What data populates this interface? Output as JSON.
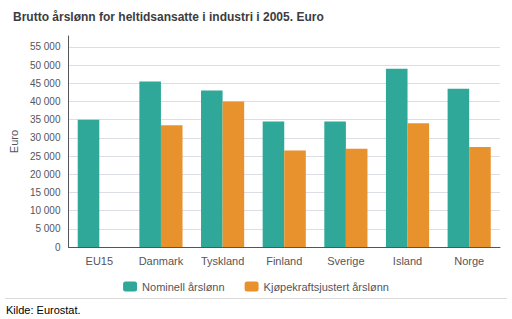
{
  "chart_data": {
    "type": "bar",
    "title": "Brutto årslønn for heltidsansatte i industri i 2005. Euro",
    "ylabel": "Euro",
    "categories": [
      "EU15",
      "Danmark",
      "Tyskland",
      "Finland",
      "Sverige",
      "Island",
      "Norge"
    ],
    "series": [
      {
        "name": "Nominell årslønn",
        "color": "#2fa899",
        "values": [
          35000,
          45500,
          43000,
          34500,
          34500,
          49000,
          43500
        ]
      },
      {
        "name": "Kjøpekraftsjustert årslønn",
        "color": "#e8922e",
        "values": [
          null,
          33500,
          40000,
          26500,
          27000,
          34000,
          27500
        ]
      }
    ],
    "ylim": [
      0,
      58000
    ],
    "yticks": [
      0,
      {
        "value": 5000,
        "label": "5 000"
      },
      {
        "value": 10000,
        "label": "10 000"
      },
      {
        "value": 15000,
        "label": "15 000"
      },
      {
        "value": 20000,
        "label": "20 000"
      },
      {
        "value": 25000,
        "label": "25 000"
      },
      {
        "value": 30000,
        "label": "30 000"
      },
      {
        "value": 35000,
        "label": "35 000"
      },
      {
        "value": 40000,
        "label": "40 000"
      },
      {
        "value": 45000,
        "label": "45 000"
      },
      {
        "value": 50000,
        "label": "50 000"
      },
      {
        "value": 55000,
        "label": "55 000"
      }
    ],
    "grid": true,
    "legend": "bottom",
    "annotations": [
      "Kilde: Eurostat."
    ]
  }
}
